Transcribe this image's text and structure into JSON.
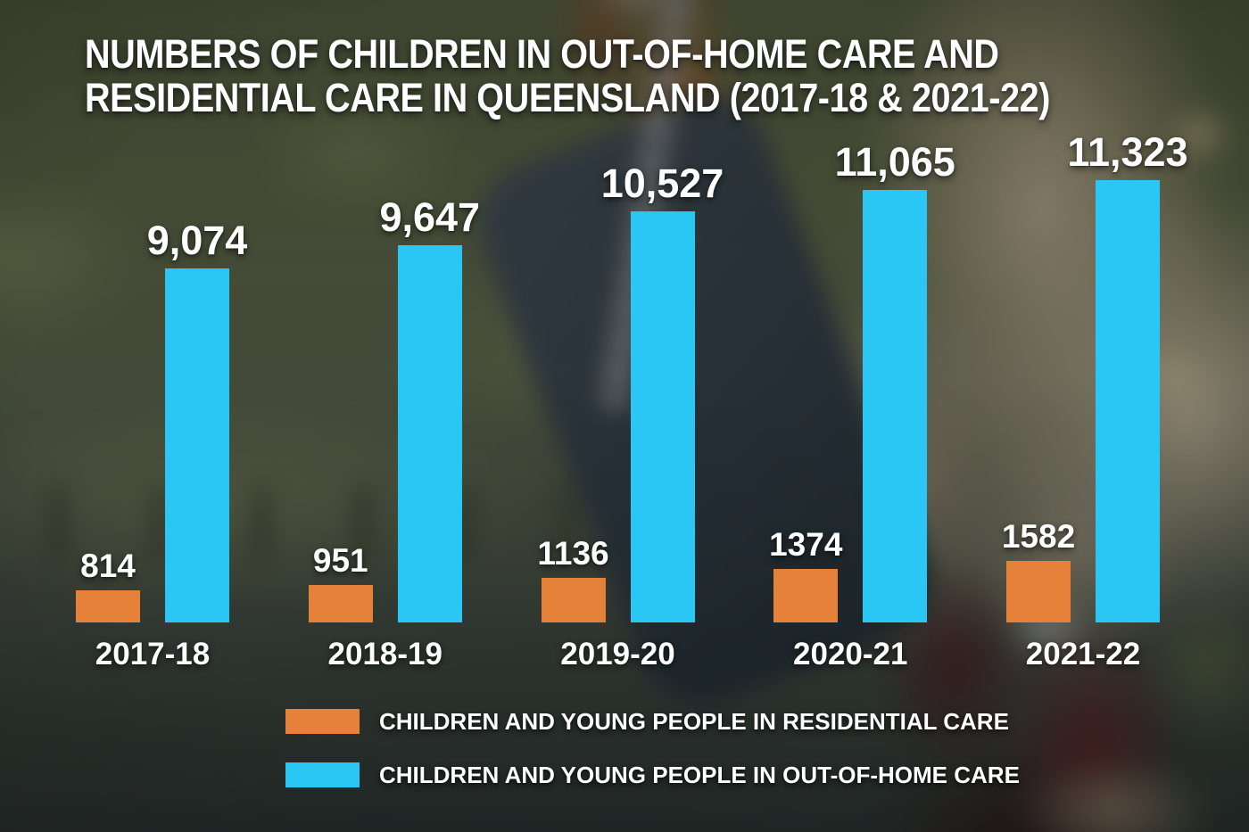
{
  "title": {
    "line1": "NUMBERS OF CHILDREN IN OUT-OF-HOME CARE AND",
    "line2": "RESIDENTIAL CARE IN QUEENSLAND (2017-18 & 2021-22)"
  },
  "chart_data": {
    "type": "bar",
    "title": "NUMBERS OF CHILDREN IN OUT-OF-HOME CARE AND RESIDENTIAL CARE IN QUEENSLAND (2017-18 & 2021-22)",
    "categories": [
      "2017-18",
      "2018-19",
      "2019-20",
      "2020-21",
      "2021-22"
    ],
    "series": [
      {
        "name": "CHILDREN AND YOUNG PEOPLE IN RESIDENTIAL CARE",
        "color": "#E6813A",
        "values": [
          814,
          951,
          1136,
          1374,
          1582
        ],
        "value_labels": [
          "814",
          "951",
          "1136",
          "1374",
          "1582"
        ]
      },
      {
        "name": "CHILDREN AND YOUNG PEOPLE IN OUT-OF-HOME CARE",
        "color": "#2AC6F4",
        "values": [
          9074,
          9647,
          10527,
          11065,
          11323
        ],
        "value_labels": [
          "9,074",
          "9,647",
          "10,527",
          "11,065",
          "11,323"
        ]
      }
    ],
    "ylim": [
      0,
      11323
    ],
    "xlabel": "",
    "ylabel": "",
    "grid": false,
    "axes_shown": false,
    "value_labels_shown": true,
    "legend_position": "bottom-center"
  },
  "legend": {
    "items": [
      {
        "label": "CHILDREN AND YOUNG PEOPLE IN RESIDENTIAL CARE",
        "color": "#E6813A"
      },
      {
        "label": "CHILDREN AND YOUNG PEOPLE IN OUT-OF-HOME CARE",
        "color": "#2AC6F4"
      }
    ]
  },
  "colors": {
    "residential_orange": "#E6813A",
    "out_of_home_blue": "#2AC6F4",
    "text_white": "#FFFFFF"
  }
}
